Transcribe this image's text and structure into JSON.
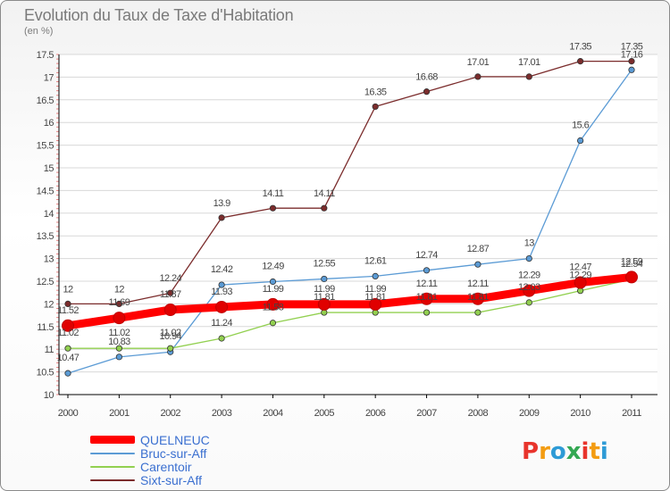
{
  "chart_data": {
    "type": "line",
    "title": "Evolution du Taux de Taxe d'Habitation",
    "subtitle": "(en %)",
    "x": [
      "2000",
      "2001",
      "2002",
      "2003",
      "2004",
      "2005",
      "2006",
      "2007",
      "2008",
      "2009",
      "2010",
      "2011"
    ],
    "ylim": [
      10,
      17.5
    ],
    "yticks": [
      "10",
      "10.5",
      "11",
      "11.5",
      "12",
      "12.5",
      "13",
      "13.5",
      "14",
      "14.5",
      "15",
      "15.5",
      "16",
      "16.5",
      "17",
      "17.5"
    ],
    "grid": "horizontal",
    "legend_position": "bottom-left",
    "series": [
      {
        "name": "QUELNEUC",
        "color": "#ff0000",
        "values": [
          11.52,
          11.69,
          11.87,
          11.93,
          11.99,
          11.99,
          11.99,
          12.11,
          12.11,
          12.29,
          12.47,
          12.59
        ],
        "labels": [
          "11.52",
          "11.69",
          "11.87",
          "11.93",
          "11.99",
          "11.99",
          "11.99",
          "12.11",
          "12.11",
          "12.29",
          "12.47",
          "12.59"
        ]
      },
      {
        "name": "Bruc-sur-Aff",
        "color": "#5b9bd5",
        "values": [
          10.47,
          10.83,
          10.94,
          12.42,
          12.49,
          12.55,
          12.61,
          12.74,
          12.87,
          13,
          15.6,
          17.16
        ],
        "labels": [
          "10.47",
          "10.83",
          "10.94",
          "12.42",
          "12.49",
          "12.55",
          "12.61",
          "12.74",
          "12.87",
          "13",
          "15.6",
          "17.16"
        ]
      },
      {
        "name": "Carentoir",
        "color": "#92d050",
        "values": [
          11.02,
          11.02,
          11.02,
          11.24,
          11.58,
          11.81,
          11.81,
          11.81,
          11.81,
          12.03,
          12.29,
          12.54
        ],
        "labels": [
          "11.02",
          "11.02",
          "11.02",
          "11.24",
          "11.58",
          "11.81",
          "11.81",
          "11.81",
          "11.81",
          "12.03",
          "12.29",
          "12.54"
        ]
      },
      {
        "name": "Sixt-sur-Aff",
        "color": "#7b2c2c",
        "values": [
          12,
          12,
          12.24,
          13.9,
          14.11,
          14.11,
          16.35,
          16.68,
          17.01,
          17.01,
          17.35,
          17.35
        ],
        "labels": [
          "12",
          "12",
          "12.24",
          "13.9",
          "14.11",
          "14.11",
          "16.35",
          "16.68",
          "17.01",
          "17.01",
          "17.35",
          "17.35"
        ]
      }
    ]
  },
  "logo": {
    "text": "Proxiti",
    "colors": [
      "#e8342c",
      "#f39c12",
      "#2e9bd6",
      "#34a853",
      "#e8342c",
      "#f39c12",
      "#2e9bd6"
    ]
  }
}
